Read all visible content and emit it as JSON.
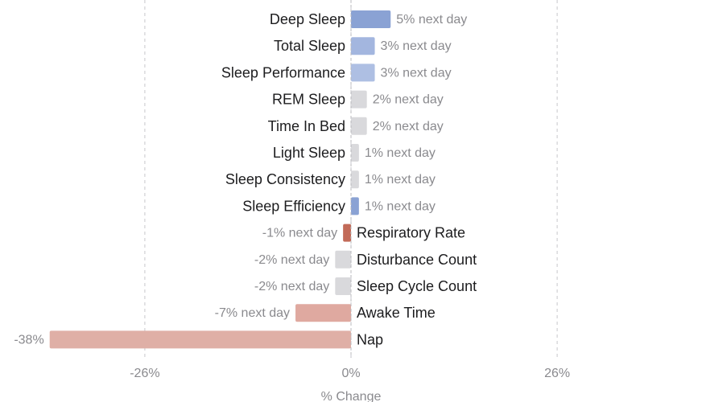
{
  "chart_data": {
    "type": "bar",
    "orientation": "horizontal",
    "categories": [
      "Deep Sleep",
      "Total Sleep",
      "Sleep Performance",
      "REM Sleep",
      "Time In Bed",
      "Light Sleep",
      "Sleep Consistency",
      "Sleep Efficiency",
      "Respiratory Rate",
      "Disturbance Count",
      "Sleep Cycle Count",
      "Awake Time",
      "Nap"
    ],
    "values": [
      5,
      3,
      3,
      2,
      2,
      1,
      1,
      1,
      -1,
      -2,
      -2,
      -7,
      -38
    ],
    "value_labels": [
      "5% next day",
      "3% next day",
      "3% next day",
      "2% next day",
      "2% next day",
      "1% next day",
      "1% next day",
      "1% next day",
      "-1% next day",
      "-2% next day",
      "-2% next day",
      "-7% next day",
      "-38%"
    ],
    "bar_colors": [
      "#8aa2d4",
      "#a3b6df",
      "#aebfe3",
      "#d9d9dc",
      "#d9d9dc",
      "#d9d9dc",
      "#d9d9dc",
      "#8aa2d4",
      "#c26a58",
      "#d9d9dc",
      "#d9d9dc",
      "#dfa9a0",
      "#dfafa6"
    ],
    "xlim": [
      -36,
      36
    ],
    "xticks": [
      -26,
      0,
      26
    ],
    "xtick_labels": [
      "-26%",
      "0%",
      "26%"
    ],
    "xlabel": "% Change",
    "grid": "vertical dashed"
  }
}
